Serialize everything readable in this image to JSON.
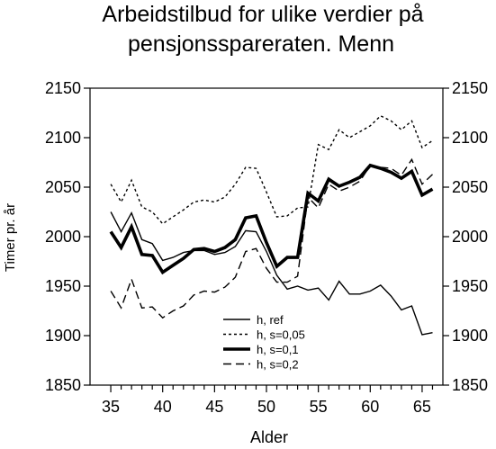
{
  "chart_data": {
    "type": "line",
    "title_lines": [
      "Arbeidstilbud for ulike verdier på",
      "pensjonsspareraten. Menn"
    ],
    "xlabel": "Alder",
    "ylabel": "Timer pr. år",
    "xlim": [
      33,
      67
    ],
    "ylim": [
      1850,
      2150
    ],
    "xticks": [
      35,
      40,
      45,
      50,
      55,
      60,
      65
    ],
    "yticks": [
      1850,
      1900,
      1950,
      2000,
      2050,
      2100,
      2150
    ],
    "grid": false,
    "legend_position": "bottom-center",
    "x": [
      35,
      36,
      37,
      38,
      39,
      40,
      41,
      42,
      43,
      44,
      45,
      46,
      47,
      48,
      49,
      50,
      51,
      52,
      53,
      54,
      55,
      56,
      57,
      58,
      59,
      60,
      61,
      62,
      63,
      64,
      65,
      66
    ],
    "series": [
      {
        "name": "h, ref",
        "style": "solid",
        "width": "thin",
        "values": [
          2025,
          2005,
          2024,
          1997,
          1993,
          1976,
          1979,
          1984,
          1986,
          1986,
          1982,
          1984,
          1990,
          2006,
          2005,
          1985,
          1961,
          1947,
          1950,
          1946,
          1948,
          1936,
          1955,
          1942,
          1942,
          1945,
          1951,
          1940,
          1926,
          1930,
          1901,
          1903
        ]
      },
      {
        "name": "h, s=0,05",
        "style": "dotted",
        "width": "thin",
        "values": [
          2053,
          2035,
          2057,
          2030,
          2025,
          2013,
          2020,
          2027,
          2035,
          2037,
          2035,
          2040,
          2053,
          2070,
          2069,
          2045,
          2020,
          2021,
          2029,
          2030,
          2093,
          2088,
          2108,
          2100,
          2106,
          2112,
          2122,
          2117,
          2108,
          2117,
          2090,
          2097
        ]
      },
      {
        "name": "h, s=0,1",
        "style": "solid",
        "width": "thick",
        "values": [
          2005,
          1989,
          2010,
          1982,
          1981,
          1964,
          1971,
          1978,
          1987,
          1988,
          1985,
          1989,
          1997,
          2019,
          2021,
          1994,
          1970,
          1979,
          1979,
          2044,
          2036,
          2058,
          2051,
          2055,
          2060,
          2072,
          2069,
          2065,
          2059,
          2066,
          2042,
          2048
        ]
      },
      {
        "name": "h, s=0,2",
        "style": "dashed",
        "width": "thin",
        "values": [
          1945,
          1928,
          1957,
          1928,
          1929,
          1918,
          1925,
          1930,
          1941,
          1945,
          1944,
          1949,
          1959,
          1985,
          1988,
          1968,
          1954,
          1954,
          1960,
          2040,
          2029,
          2053,
          2046,
          2050,
          2056,
          2072,
          2070,
          2069,
          2062,
          2078,
          2053,
          2063
        ]
      }
    ]
  }
}
